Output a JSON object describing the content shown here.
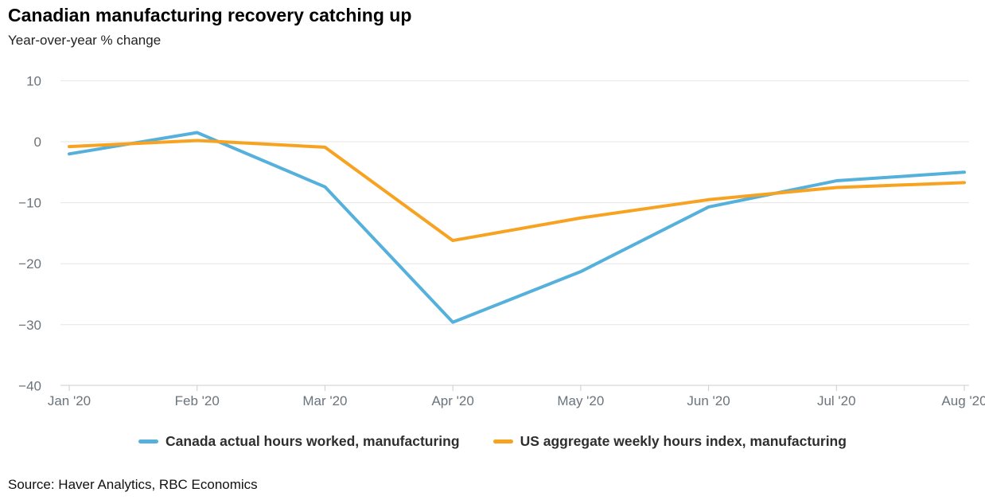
{
  "header": {
    "title": "Canadian manufacturing recovery catching up",
    "subtitle": "Year-over-year % change"
  },
  "footer": {
    "source": "Source: Haver Analytics, RBC Economics"
  },
  "colors": {
    "canada_line": "#55b1db",
    "us_line": "#f7a321",
    "gridline": "#e6e6e6",
    "axis_line": "#cccccc",
    "tick_label": "#6b737b"
  },
  "chart_data": {
    "type": "line",
    "title": "Canadian manufacturing recovery catching up",
    "subtitle": "Year-over-year % change",
    "xlabel": "",
    "ylabel": "",
    "categories": [
      "Jan '20",
      "Feb '20",
      "Mar '20",
      "Apr '20",
      "May '20",
      "Jun '20",
      "Jul '20",
      "Aug '20"
    ],
    "series": [
      {
        "name": "Canada actual hours worked, manufacturing",
        "color": "#55b1db",
        "values": [
          -2.0,
          1.5,
          -7.4,
          -29.6,
          -21.3,
          -10.7,
          -6.4,
          -5.0
        ]
      },
      {
        "name": "US aggregate weekly hours index, manufacturing",
        "color": "#f7a321",
        "values": [
          -0.8,
          0.2,
          -0.9,
          -16.2,
          -12.5,
          -9.5,
          -7.5,
          -6.7
        ]
      }
    ],
    "ylim": [
      -40,
      10
    ],
    "yticks": [
      10,
      0,
      -10,
      -20,
      -30,
      -40
    ],
    "grid": true,
    "legend_position": "bottom"
  }
}
